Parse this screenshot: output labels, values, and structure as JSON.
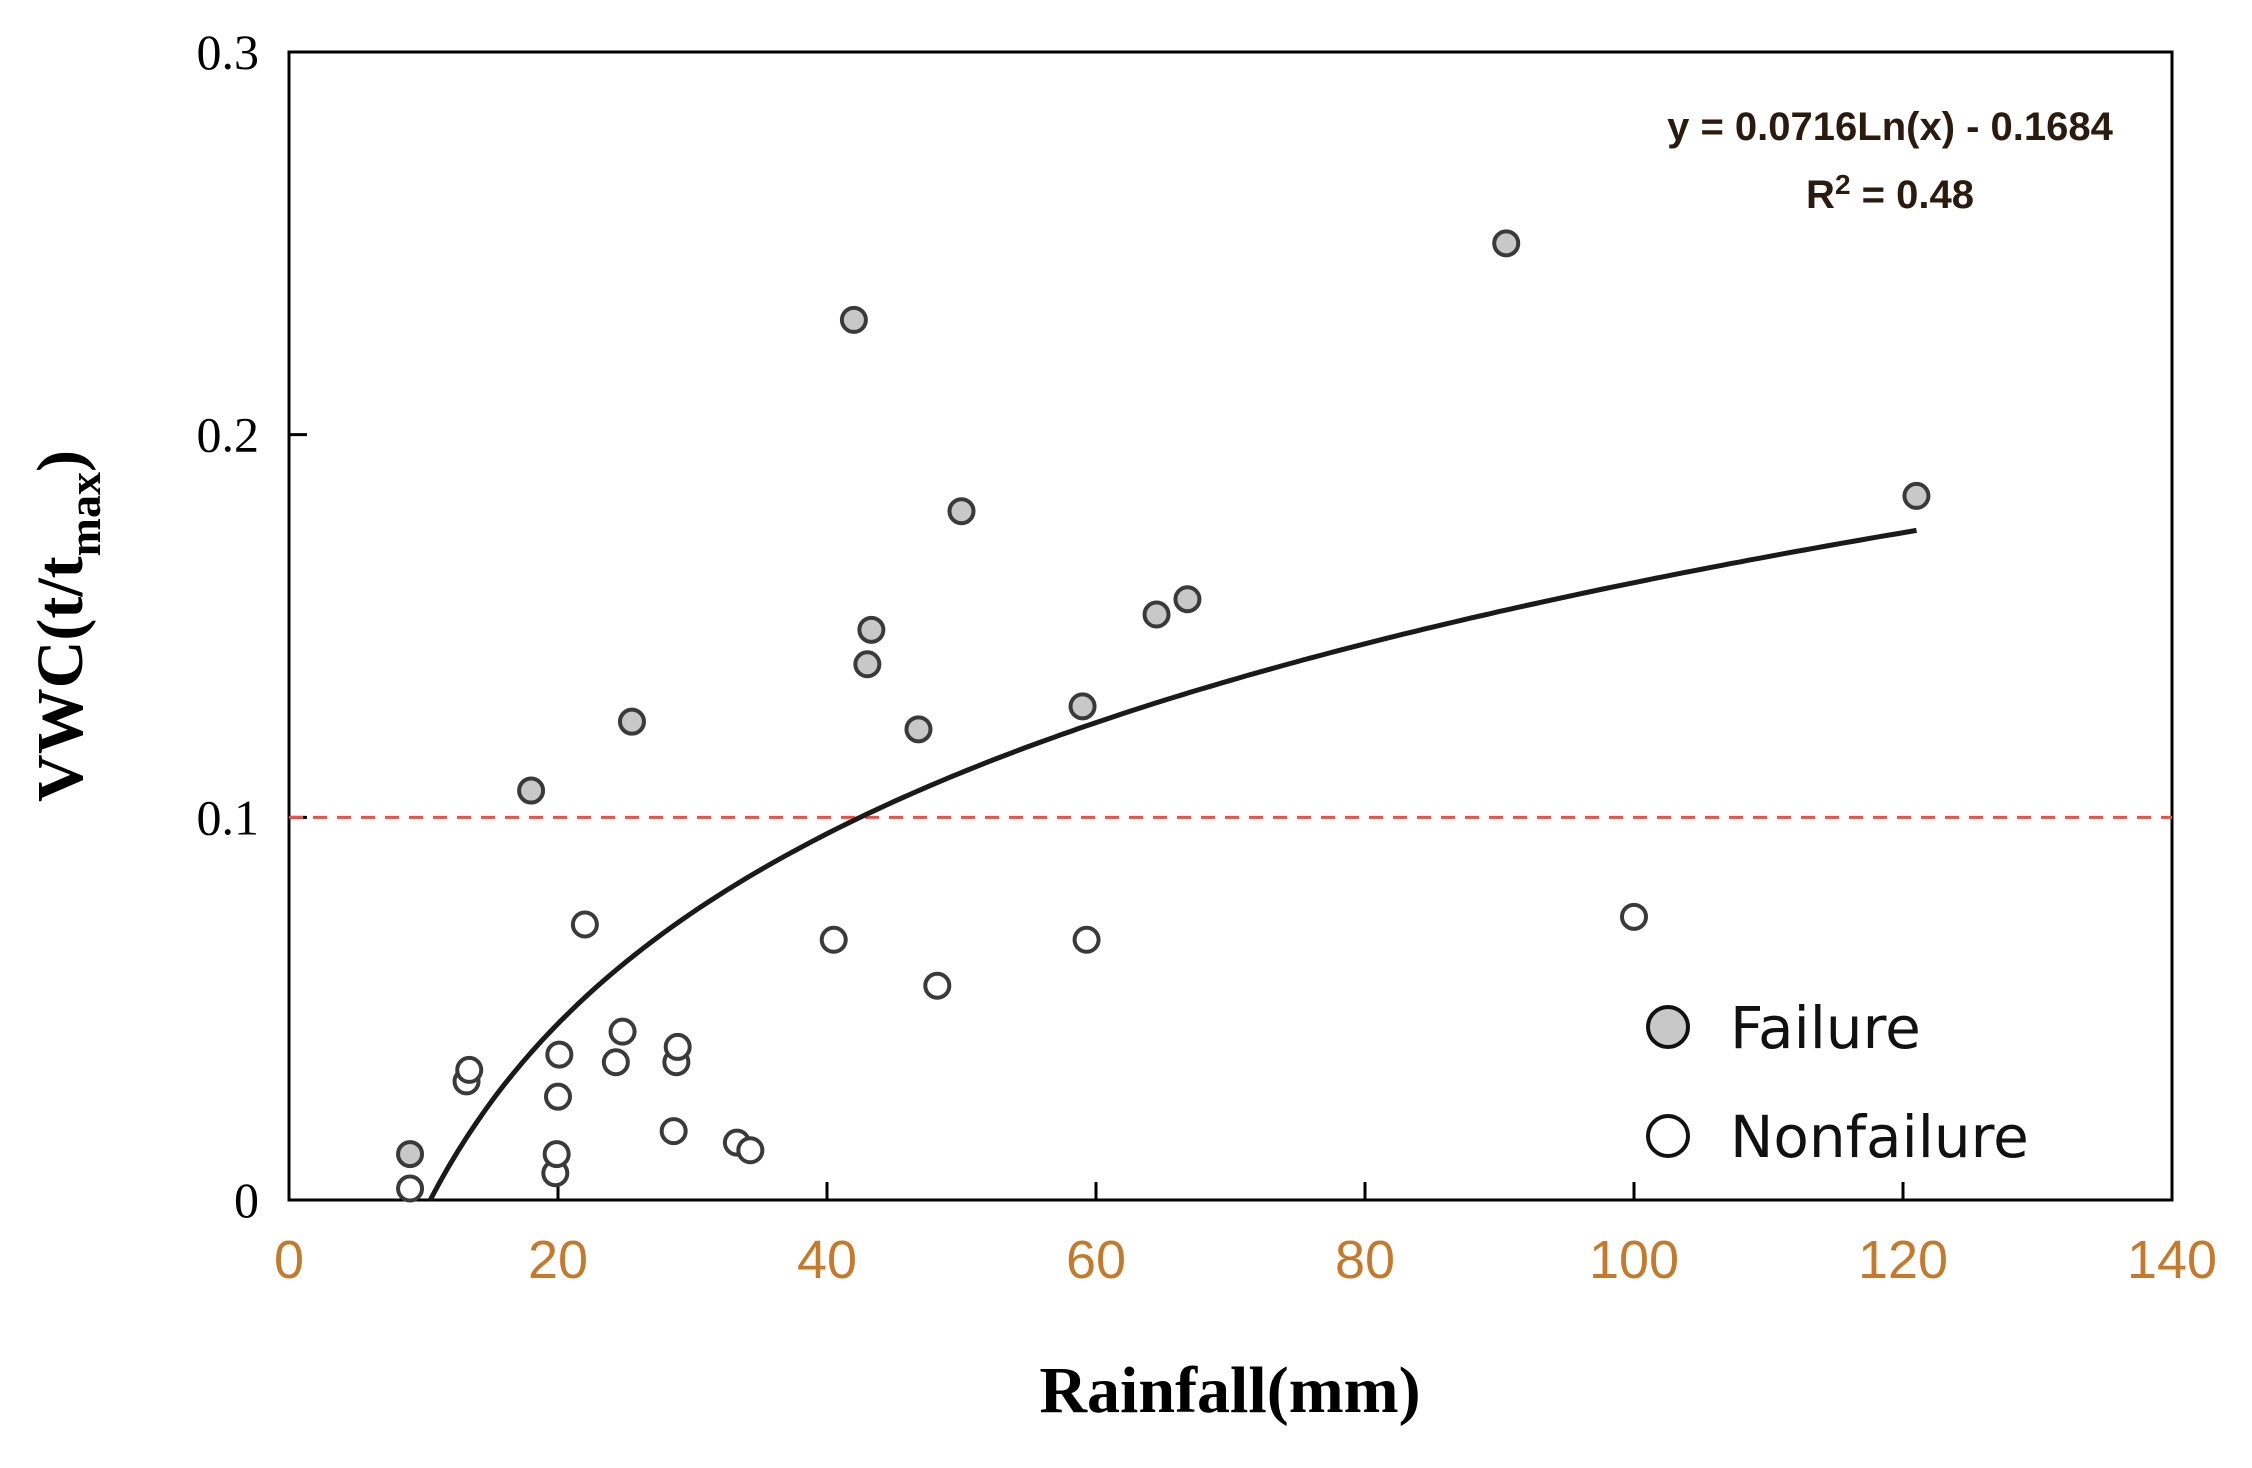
{
  "chart_data": {
    "type": "scatter",
    "title": "",
    "xlabel": "Rainfall(mm)",
    "ylabel_main": "VWC(t/t",
    "ylabel_sub": "max",
    "ylabel_close": ")",
    "xlim": [
      0,
      140
    ],
    "ylim": [
      0,
      0.3
    ],
    "x_ticks": [
      0,
      20,
      40,
      60,
      80,
      100,
      120,
      140
    ],
    "y_ticks": [
      0,
      0.1,
      0.2,
      0.3
    ],
    "x_tick_labels": [
      "0",
      "20",
      "40",
      "60",
      "80",
      "100",
      "120",
      "140"
    ],
    "y_tick_labels": [
      "0",
      "0.1",
      "0.2",
      "0.3"
    ],
    "grid": false,
    "threshold": {
      "y": 0.1,
      "color": "#e8504a",
      "style": "dashed"
    },
    "trendline": {
      "equation": "y = 0.0716Ln(x) - 0.1684",
      "r2_prefix": "R",
      "r2_sup": "2",
      "r2_suffix": " = 0.48",
      "a": 0.0716,
      "b": -0.1684,
      "x_range": [
        10.5,
        121
      ]
    },
    "legend_position": "bottom-right",
    "series": [
      {
        "name": "Failure",
        "marker": "filled-circle",
        "fill": "#c8c8c8",
        "points": [
          [
            9,
            0.012
          ],
          [
            18,
            0.107
          ],
          [
            25.5,
            0.125
          ],
          [
            42,
            0.23
          ],
          [
            43,
            0.14
          ],
          [
            43.3,
            0.149
          ],
          [
            46.8,
            0.123
          ],
          [
            50,
            0.18
          ],
          [
            59,
            0.129
          ],
          [
            64.5,
            0.153
          ],
          [
            66.8,
            0.157
          ],
          [
            90.5,
            0.25
          ],
          [
            121,
            0.184
          ]
        ]
      },
      {
        "name": "Nonfailure",
        "marker": "open-circle",
        "fill": "#ffffff",
        "points": [
          [
            9,
            0.003
          ],
          [
            13.2,
            0.031
          ],
          [
            13.4,
            0.034
          ],
          [
            19.8,
            0.007
          ],
          [
            19.9,
            0.012
          ],
          [
            20,
            0.027
          ],
          [
            20.1,
            0.038
          ],
          [
            22,
            0.072
          ],
          [
            24.3,
            0.036
          ],
          [
            24.8,
            0.044
          ],
          [
            28.6,
            0.018
          ],
          [
            28.8,
            0.036
          ],
          [
            28.9,
            0.04
          ],
          [
            33.3,
            0.015
          ],
          [
            34.3,
            0.013
          ],
          [
            40.5,
            0.068
          ],
          [
            48.2,
            0.056
          ],
          [
            59.3,
            0.068
          ],
          [
            100,
            0.074
          ]
        ]
      }
    ]
  }
}
